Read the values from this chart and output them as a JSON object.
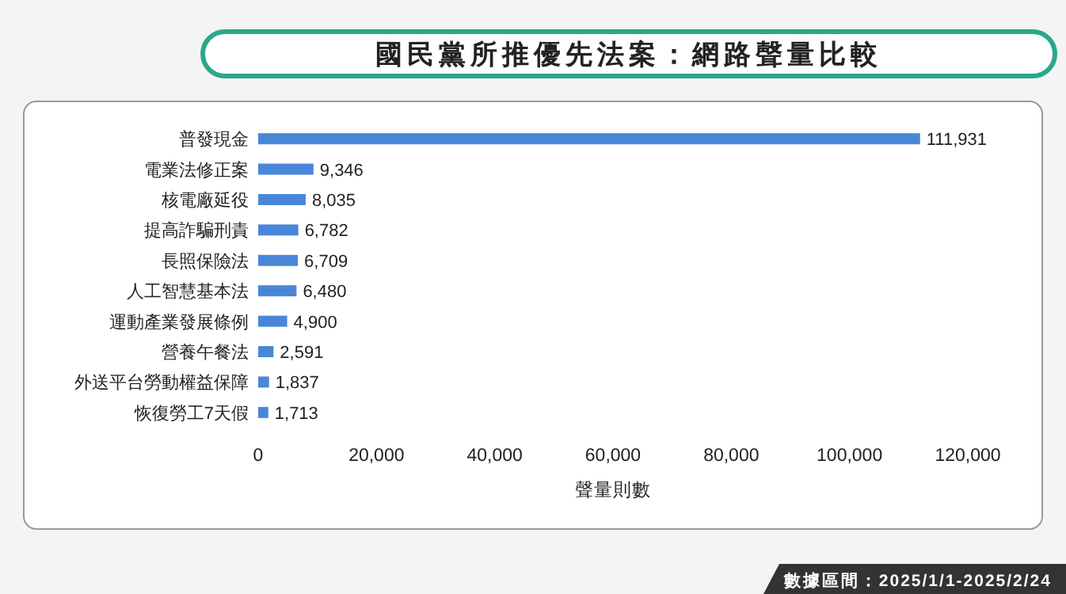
{
  "chart_data": {
    "type": "bar",
    "orientation": "horizontal",
    "title": "國民黨所推優先法案：網路聲量比較",
    "xlabel": "聲量則數",
    "categories": [
      "普發現金",
      "電業法修正案",
      "核電廠延役",
      "提高詐騙刑責",
      "長照保險法",
      "人工智慧基本法",
      "運動產業發展條例",
      "營養午餐法",
      "外送平台勞動權益保障",
      "恢復勞工7天假"
    ],
    "values": [
      111931,
      9346,
      8035,
      6782,
      6709,
      6480,
      4900,
      2591,
      1837,
      1713
    ],
    "value_labels": [
      "111,931",
      "9,346",
      "8,035",
      "6,782",
      "6,709",
      "6,480",
      "4,900",
      "2,591",
      "1,837",
      "1,713"
    ],
    "color": "#4a86d8",
    "xlim": [
      0,
      120000
    ],
    "xticks": [
      0,
      {
        "value": 20000,
        "label": "20,000"
      },
      {
        "value": 40000,
        "label": "40,000"
      },
      {
        "value": 60000,
        "label": "60,000"
      },
      {
        "value": 80000,
        "label": "80,000"
      },
      {
        "value": 100000,
        "label": "100,000"
      },
      {
        "value": 120000,
        "label": "120,000"
      }
    ],
    "grid": false,
    "annotations": [
      "數據區間：2025/1/1-2025/2/24"
    ]
  }
}
